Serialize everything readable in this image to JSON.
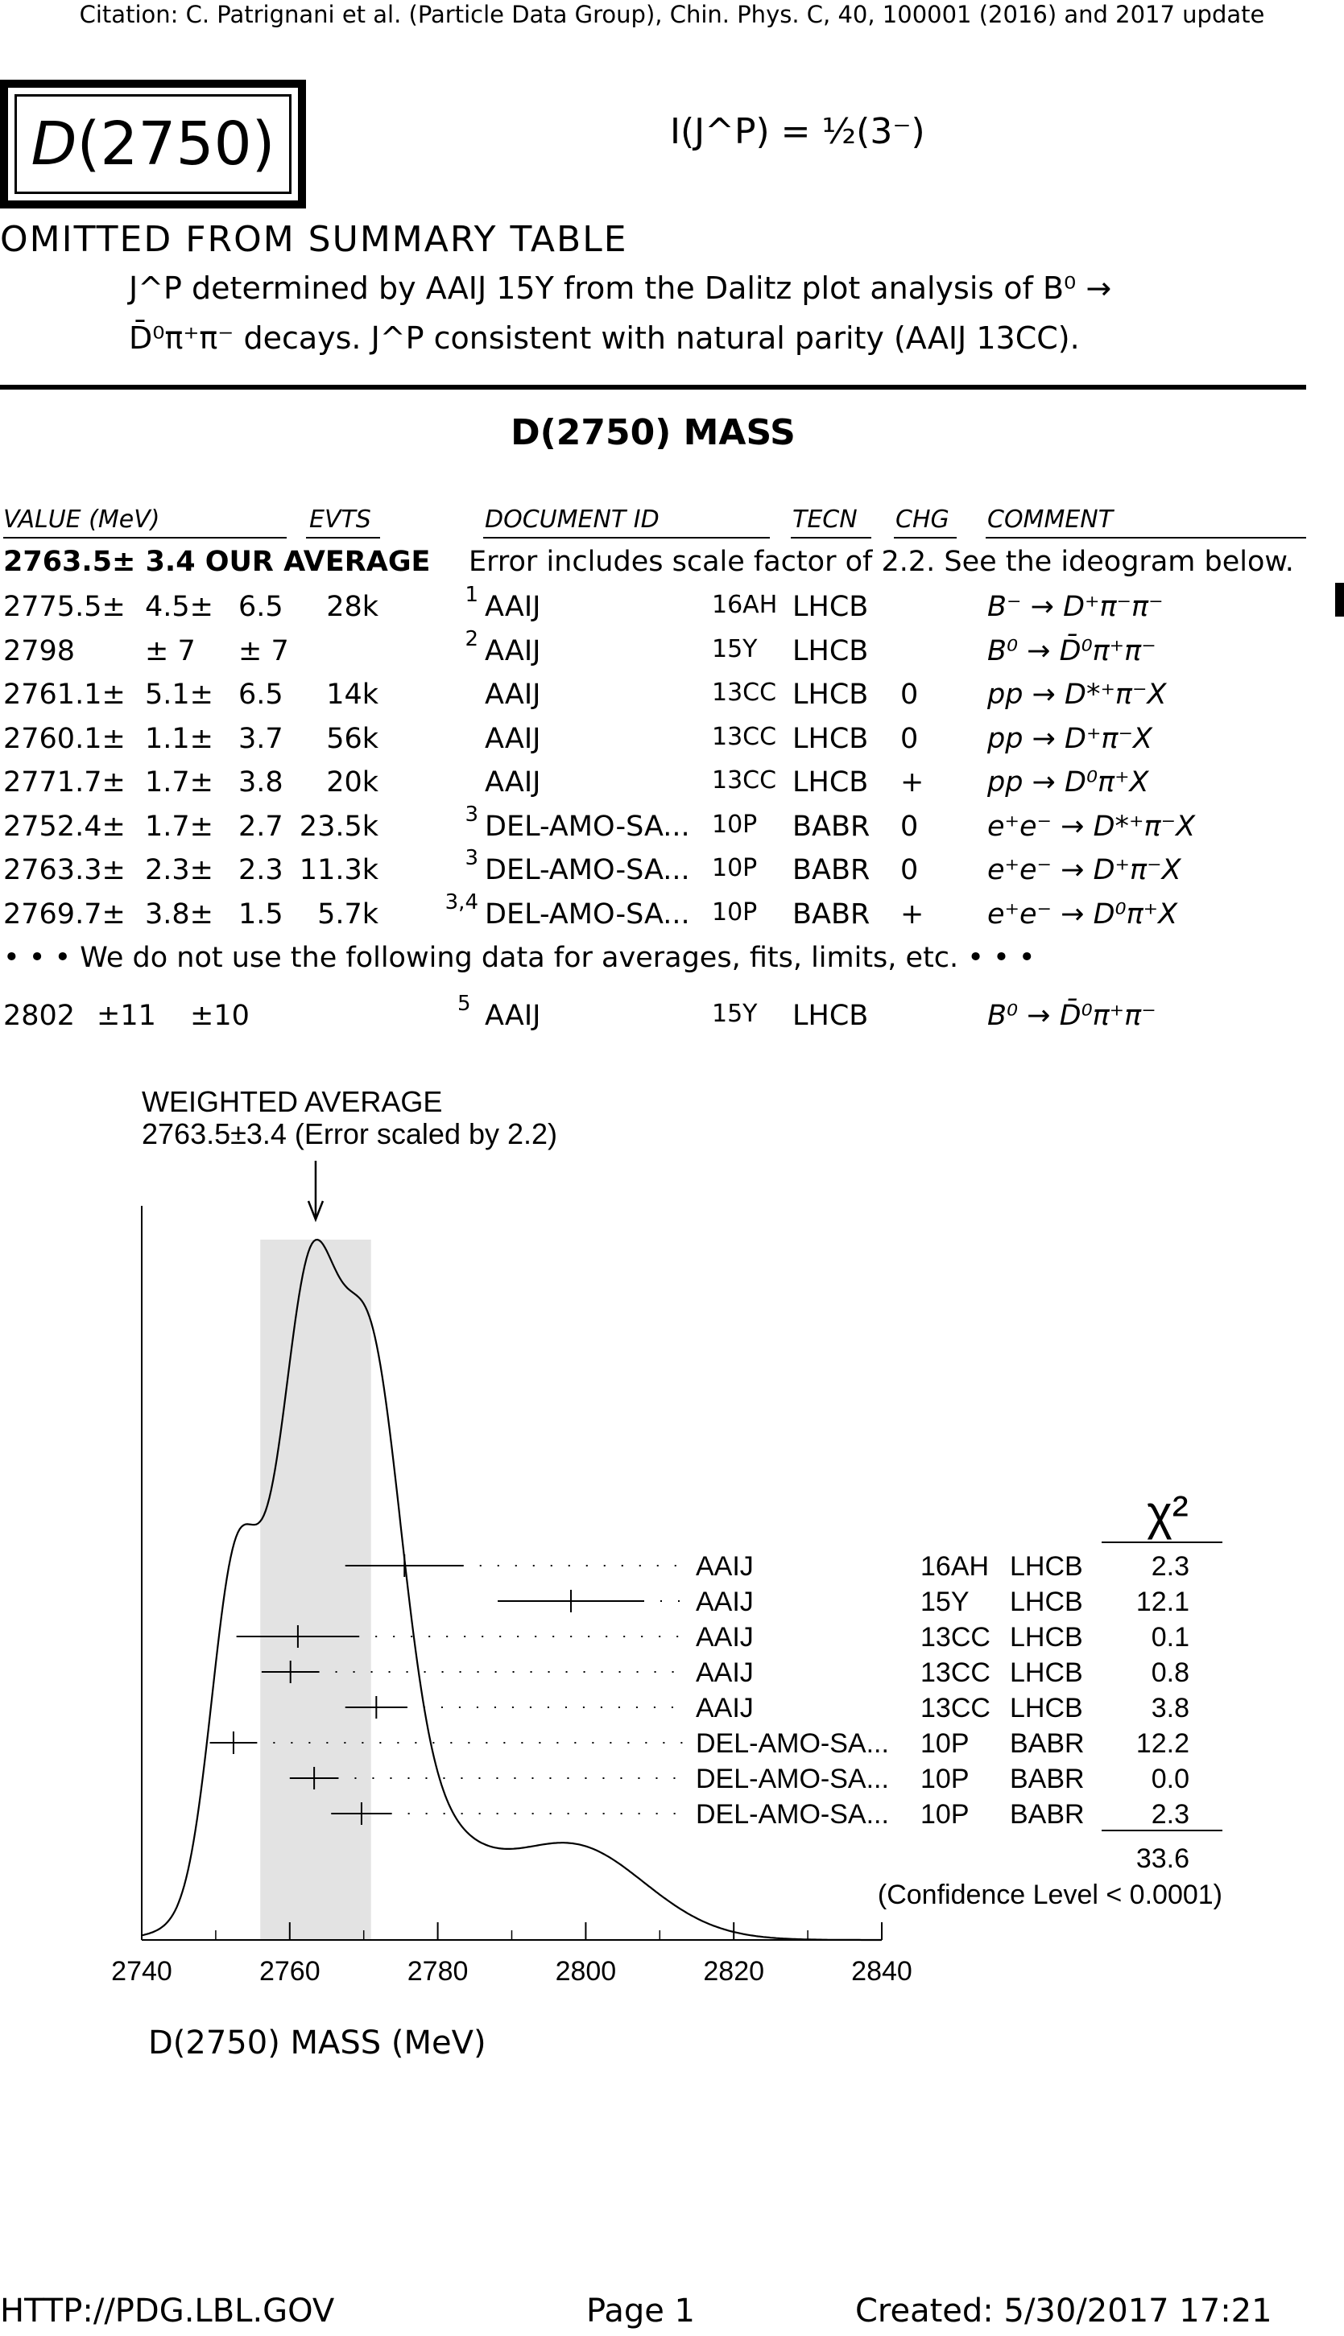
{
  "citation": "Citation: C. Patrignani et al. (Particle Data Group), Chin. Phys. C, 40, 100001 (2016) and 2017 update",
  "particle": {
    "name_letter": "D",
    "name_mass": "(2750)",
    "quantum_numbers": "I(J^P) = ½(3⁻)"
  },
  "omitted": "OMITTED FROM SUMMARY TABLE",
  "note": {
    "line1": "J^P determined by AAIJ 15Y from the Dalitz plot analysis of B⁰ →",
    "line2": "D̄⁰π⁺π⁻ decays. J^P consistent with natural parity (AAIJ 13CC)."
  },
  "section_title": "D(2750) MASS",
  "table": {
    "headers": {
      "value": "VALUE (MeV)",
      "evts": "EVTS",
      "document_id": "DOCUMENT ID",
      "tecn": "TECN",
      "chg": "CHG",
      "comment": "COMMENT"
    },
    "average": {
      "value": "2763.5±  3.4 OUR AVERAGE",
      "comment": "Error includes scale factor of 2.2. See the ideogram below."
    },
    "rows": [
      {
        "value": "2775.5±",
        "err1": "4.5±",
        "err2": "6.5",
        "evts": "28k",
        "note": "1",
        "doc": "AAIJ",
        "year": "16AH",
        "tecn": "LHCB",
        "chg": "",
        "comment": "B⁻ → D⁺π⁻π⁻"
      },
      {
        "value": "2798",
        "err1": "± 7",
        "err2": "± 7",
        "evts": "",
        "note": "2",
        "doc": "AAIJ",
        "year": "15Y",
        "tecn": "LHCB",
        "chg": "",
        "comment": "B⁰ → D̄⁰π⁺π⁻"
      },
      {
        "value": "2761.1±",
        "err1": "5.1±",
        "err2": "6.5",
        "evts": "14k",
        "note": "",
        "doc": "AAIJ",
        "year": "13CC",
        "tecn": "LHCB",
        "chg": "0",
        "comment": "pp → D*⁺π⁻X"
      },
      {
        "value": "2760.1±",
        "err1": "1.1±",
        "err2": "3.7",
        "evts": "56k",
        "note": "",
        "doc": "AAIJ",
        "year": "13CC",
        "tecn": "LHCB",
        "chg": "0",
        "comment": "pp → D⁺π⁻X"
      },
      {
        "value": "2771.7±",
        "err1": "1.7±",
        "err2": "3.8",
        "evts": "20k",
        "note": "",
        "doc": "AAIJ",
        "year": "13CC",
        "tecn": "LHCB",
        "chg": "+",
        "comment": "pp → D⁰π⁺X"
      },
      {
        "value": "2752.4±",
        "err1": "1.7±",
        "err2": "2.7",
        "evts": "23.5k",
        "note": "3",
        "doc": "DEL-AMO-SA...",
        "year": "10P",
        "tecn": "BABR",
        "chg": "0",
        "comment": "e⁺e⁻ → D*⁺π⁻X"
      },
      {
        "value": "2763.3±",
        "err1": "2.3±",
        "err2": "2.3",
        "evts": "11.3k",
        "note": "3",
        "doc": "DEL-AMO-SA...",
        "year": "10P",
        "tecn": "BABR",
        "chg": "0",
        "comment": "e⁺e⁻ → D⁺π⁻X"
      },
      {
        "value": "2769.7±",
        "err1": "3.8±",
        "err2": "1.5",
        "evts": "5.7k",
        "note": "3,4",
        "doc": "DEL-AMO-SA...",
        "year": "10P",
        "tecn": "BABR",
        "chg": "+",
        "comment": "e⁺e⁻ → D⁰π⁺X"
      }
    ],
    "notused": "• • • We do not use the following data for averages, fits, limits, etc. • • •",
    "extra": {
      "value": "2802",
      "err1": "±11",
      "err2": "±10",
      "note": "5",
      "doc": "AAIJ",
      "year": "15Y",
      "tecn": "LHCB",
      "comment": "B⁰ → D̄⁰π⁺π⁻"
    }
  },
  "ideogram": {
    "wa_title": "WEIGHTED AVERAGE",
    "wa_value": "2763.5±3.4 (Error scaled by 2.2)",
    "chi2_header": "χ²",
    "chi2_total": "33.6",
    "confidence": "(Confidence Level < 0.0001)",
    "xlabel": "D(2750) MASS (MeV)",
    "ticks": [
      "2740",
      "2760",
      "2780",
      "2800",
      "2820",
      "2840"
    ],
    "entries": [
      {
        "label": "AAIJ",
        "year": "16AH",
        "tecn": "LHCB",
        "chi2": "2.3"
      },
      {
        "label": "AAIJ",
        "year": "15Y",
        "tecn": "LHCB",
        "chi2": "12.1"
      },
      {
        "label": "AAIJ",
        "year": "13CC",
        "tecn": "LHCB",
        "chi2": "0.1"
      },
      {
        "label": "AAIJ",
        "year": "13CC",
        "tecn": "LHCB",
        "chi2": "0.8"
      },
      {
        "label": "AAIJ",
        "year": "13CC",
        "tecn": "LHCB",
        "chi2": "3.8"
      },
      {
        "label": "DEL-AMO-SA...",
        "year": "10P",
        "tecn": "BABR",
        "chi2": "12.2"
      },
      {
        "label": "DEL-AMO-SA...",
        "year": "10P",
        "tecn": "BABR",
        "chi2": "0.0"
      },
      {
        "label": "DEL-AMO-SA...",
        "year": "10P",
        "tecn": "BABR",
        "chi2": "2.3"
      }
    ]
  },
  "chart_data": {
    "type": "scatter",
    "xlim": [
      2740,
      2840
    ],
    "average": {
      "value": 2763.5,
      "error": 3.4,
      "scale_factor": 2.2
    },
    "points": [
      {
        "x": 2775.5,
        "err": 8.0
      },
      {
        "x": 2798.0,
        "err": 9.9
      },
      {
        "x": 2761.1,
        "err": 8.3
      },
      {
        "x": 2760.1,
        "err": 3.9
      },
      {
        "x": 2771.7,
        "err": 4.2
      },
      {
        "x": 2752.4,
        "err": 3.2
      },
      {
        "x": 2763.3,
        "err": 3.3
      },
      {
        "x": 2769.7,
        "err": 4.1
      }
    ]
  },
  "footer": {
    "url": "HTTP://PDG.LBL.GOV",
    "page": "Page 1",
    "created": "Created: 5/30/2017 17:21"
  }
}
